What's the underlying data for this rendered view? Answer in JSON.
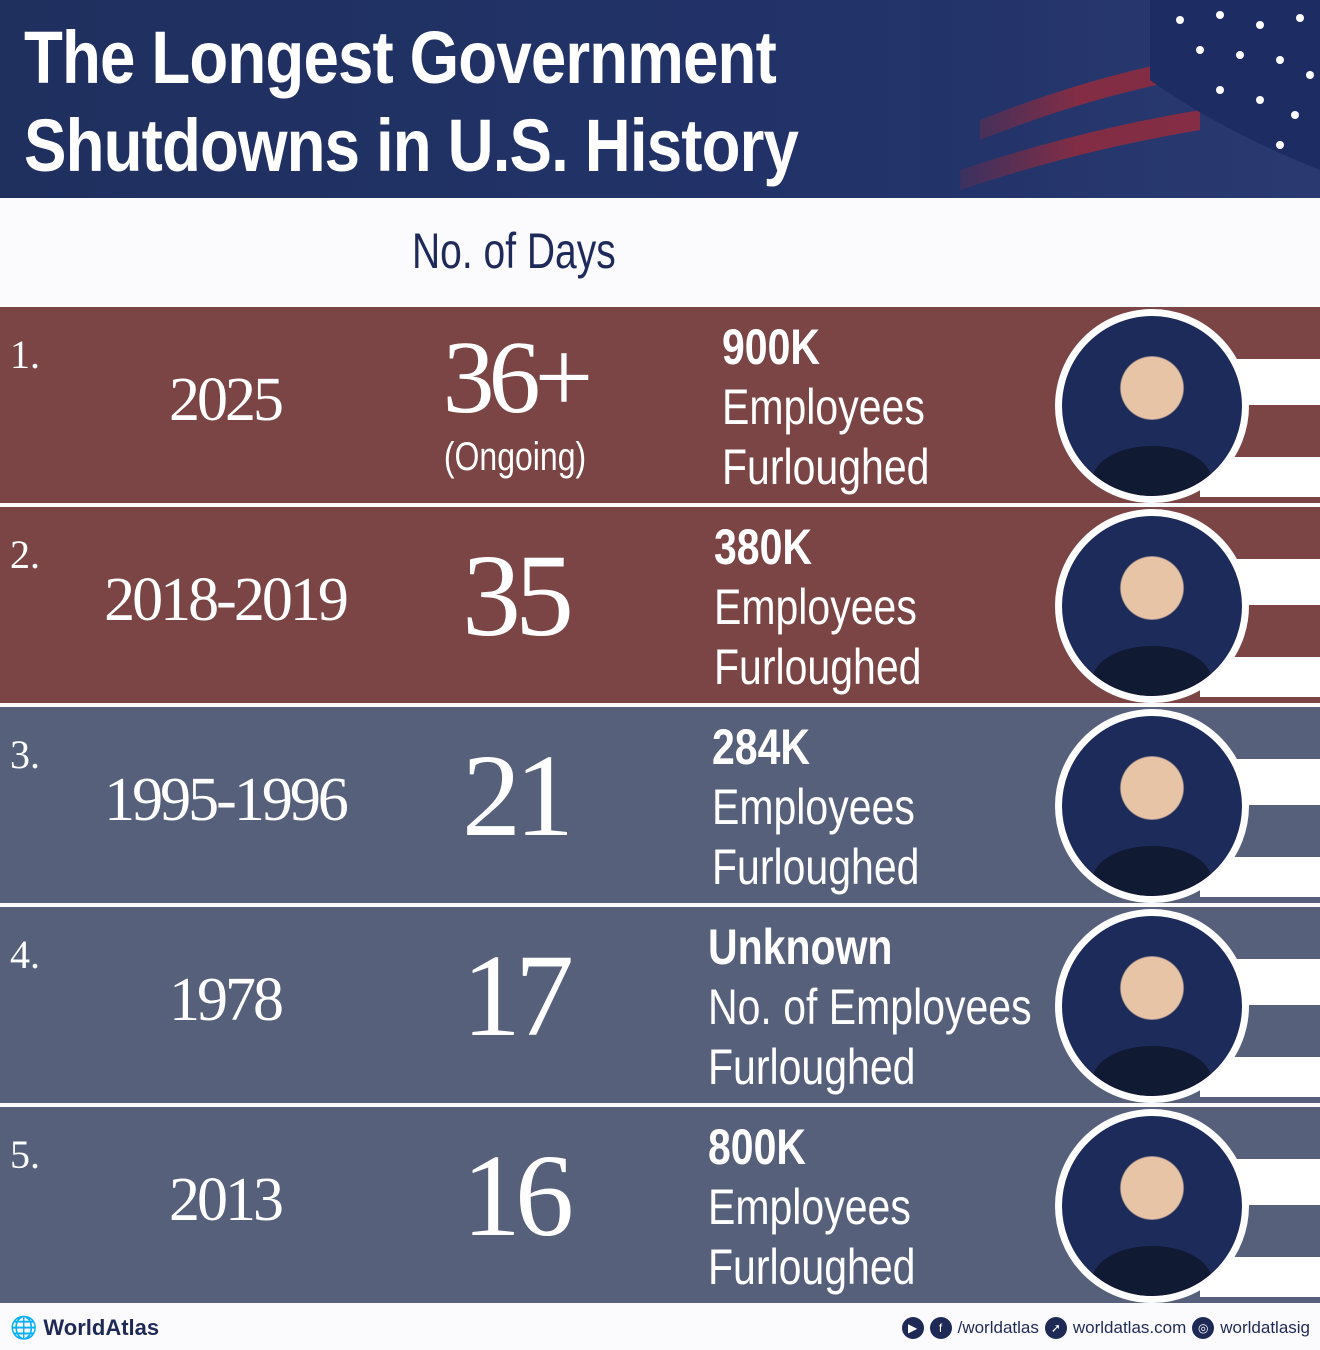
{
  "title_line1": "The Longest  Government",
  "title_line2": "Shutdowns in U.S. History",
  "column_header": "No. of Days",
  "colors": {
    "header": "#1f2f5e",
    "recent_rows": "#7c4545",
    "older_rows": "#56607a"
  },
  "rows": [
    {
      "rank": "1.",
      "years": "2025",
      "days": "36+",
      "note": "(Ongoing)",
      "count": "900K",
      "line2": "Employees",
      "line3": "Furloughed"
    },
    {
      "rank": "2.",
      "years": "2018-2019",
      "days": "35",
      "count": "380K",
      "line2": "Employees",
      "line3": "Furloughed"
    },
    {
      "rank": "3.",
      "years": "1995-1996",
      "days": "21",
      "count": "284K",
      "line2": "Employees",
      "line3": "Furloughed"
    },
    {
      "rank": "4.",
      "years": "1978",
      "days": "17",
      "count": "Unknown",
      "line2": "No. of Employees",
      "line3": "Furloughed"
    },
    {
      "rank": "5.",
      "years": "2013",
      "days": "16",
      "count": "800K",
      "line2": "Employees",
      "line3": "Furloughed"
    }
  ],
  "footer": {
    "brand": "WorldAtlas",
    "social": "/worldatlas",
    "site": "worldatlas.com",
    "instagram": "worldatlasig"
  }
}
